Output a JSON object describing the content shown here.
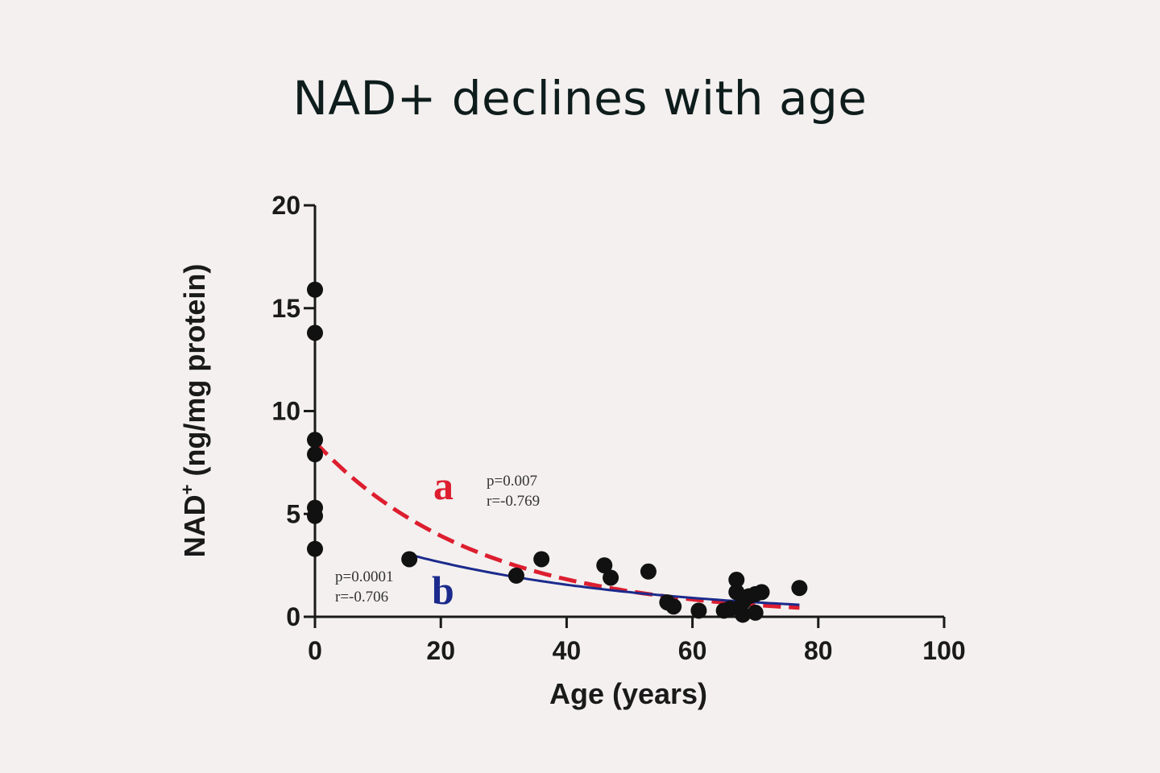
{
  "title": "NAD+ declines with age",
  "chart_data": {
    "type": "scatter",
    "xlabel": "Age (years)",
    "ylabel": "NAD",
    "ylabel_sup": "+",
    "ylabel_unit": " (ng/mg protein)",
    "xlim": [
      0,
      100
    ],
    "ylim": [
      0,
      20
    ],
    "xticks": [
      0,
      20,
      40,
      60,
      80,
      100
    ],
    "yticks": [
      0,
      5,
      10,
      15,
      20
    ],
    "points": [
      [
        0,
        15.9
      ],
      [
        0,
        13.8
      ],
      [
        0,
        8.6
      ],
      [
        0,
        7.9
      ],
      [
        0,
        5.3
      ],
      [
        0,
        4.9
      ],
      [
        0,
        3.3
      ],
      [
        15,
        2.8
      ],
      [
        32,
        2.0
      ],
      [
        36,
        2.8
      ],
      [
        46,
        2.5
      ],
      [
        47,
        1.9
      ],
      [
        53,
        2.2
      ],
      [
        56,
        0.7
      ],
      [
        57,
        0.5
      ],
      [
        61,
        0.3
      ],
      [
        65,
        0.3
      ],
      [
        66,
        0.4
      ],
      [
        67,
        1.8
      ],
      [
        67,
        1.2
      ],
      [
        68,
        0.1
      ],
      [
        68,
        0.7
      ],
      [
        69,
        1.0
      ],
      [
        70,
        0.2
      ],
      [
        70,
        1.1
      ],
      [
        71,
        1.2
      ],
      [
        77,
        1.4
      ]
    ],
    "fits": [
      {
        "name": "a",
        "color": "#dd1e2f",
        "style": "dashed",
        "x": [
          0,
          77
        ],
        "model": "exp",
        "a": 8.5,
        "k": 0.0385
      },
      {
        "name": "b",
        "color": "#1b2a8c",
        "style": "solid",
        "x": [
          15,
          77
        ],
        "model": "exp",
        "a": 4.5,
        "k": 0.0265
      }
    ],
    "annotations": {
      "a_label": "a",
      "a_p": "p=0.007",
      "a_r": "r=-0.769",
      "b_label": "b",
      "b_p": "p=0.0001",
      "b_r": "r=-0.706"
    }
  }
}
